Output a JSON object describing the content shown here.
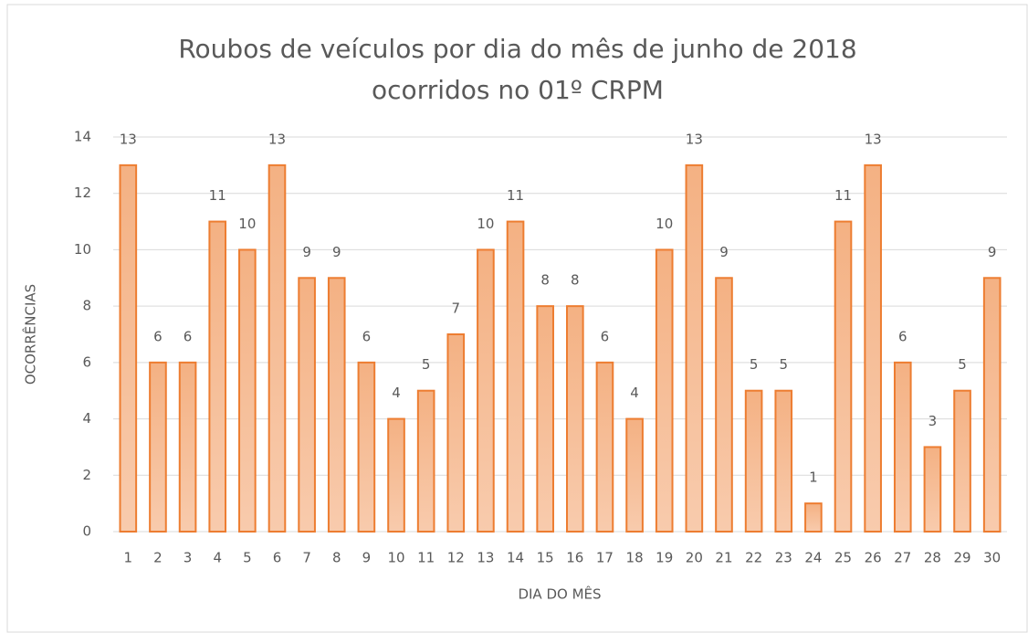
{
  "chart_data": {
    "type": "bar",
    "title": [
      "Roubos de veículos por dia do mês de junho de 2018",
      "ocorridos no 01º CRPM"
    ],
    "x_label": "DIA DO MÊS",
    "y_label": "OCORRÊNCIAS",
    "categories": [
      "1",
      "2",
      "3",
      "4",
      "5",
      "6",
      "7",
      "8",
      "9",
      "10",
      "11",
      "12",
      "13",
      "14",
      "15",
      "16",
      "17",
      "18",
      "19",
      "20",
      "21",
      "22",
      "23",
      "24",
      "25",
      "26",
      "27",
      "28",
      "29",
      "30"
    ],
    "values": [
      13,
      6,
      6,
      11,
      10,
      13,
      9,
      9,
      6,
      4,
      5,
      7,
      10,
      11,
      8,
      8,
      6,
      4,
      10,
      13,
      9,
      5,
      5,
      1,
      11,
      13,
      6,
      3,
      5,
      9
    ],
    "color": "#f4b183",
    "edge_color": "#ed7d31",
    "ylim": [
      0,
      14
    ],
    "yticks": [
      0,
      2,
      4,
      6,
      8,
      10,
      12,
      14
    ],
    "grid": true
  }
}
